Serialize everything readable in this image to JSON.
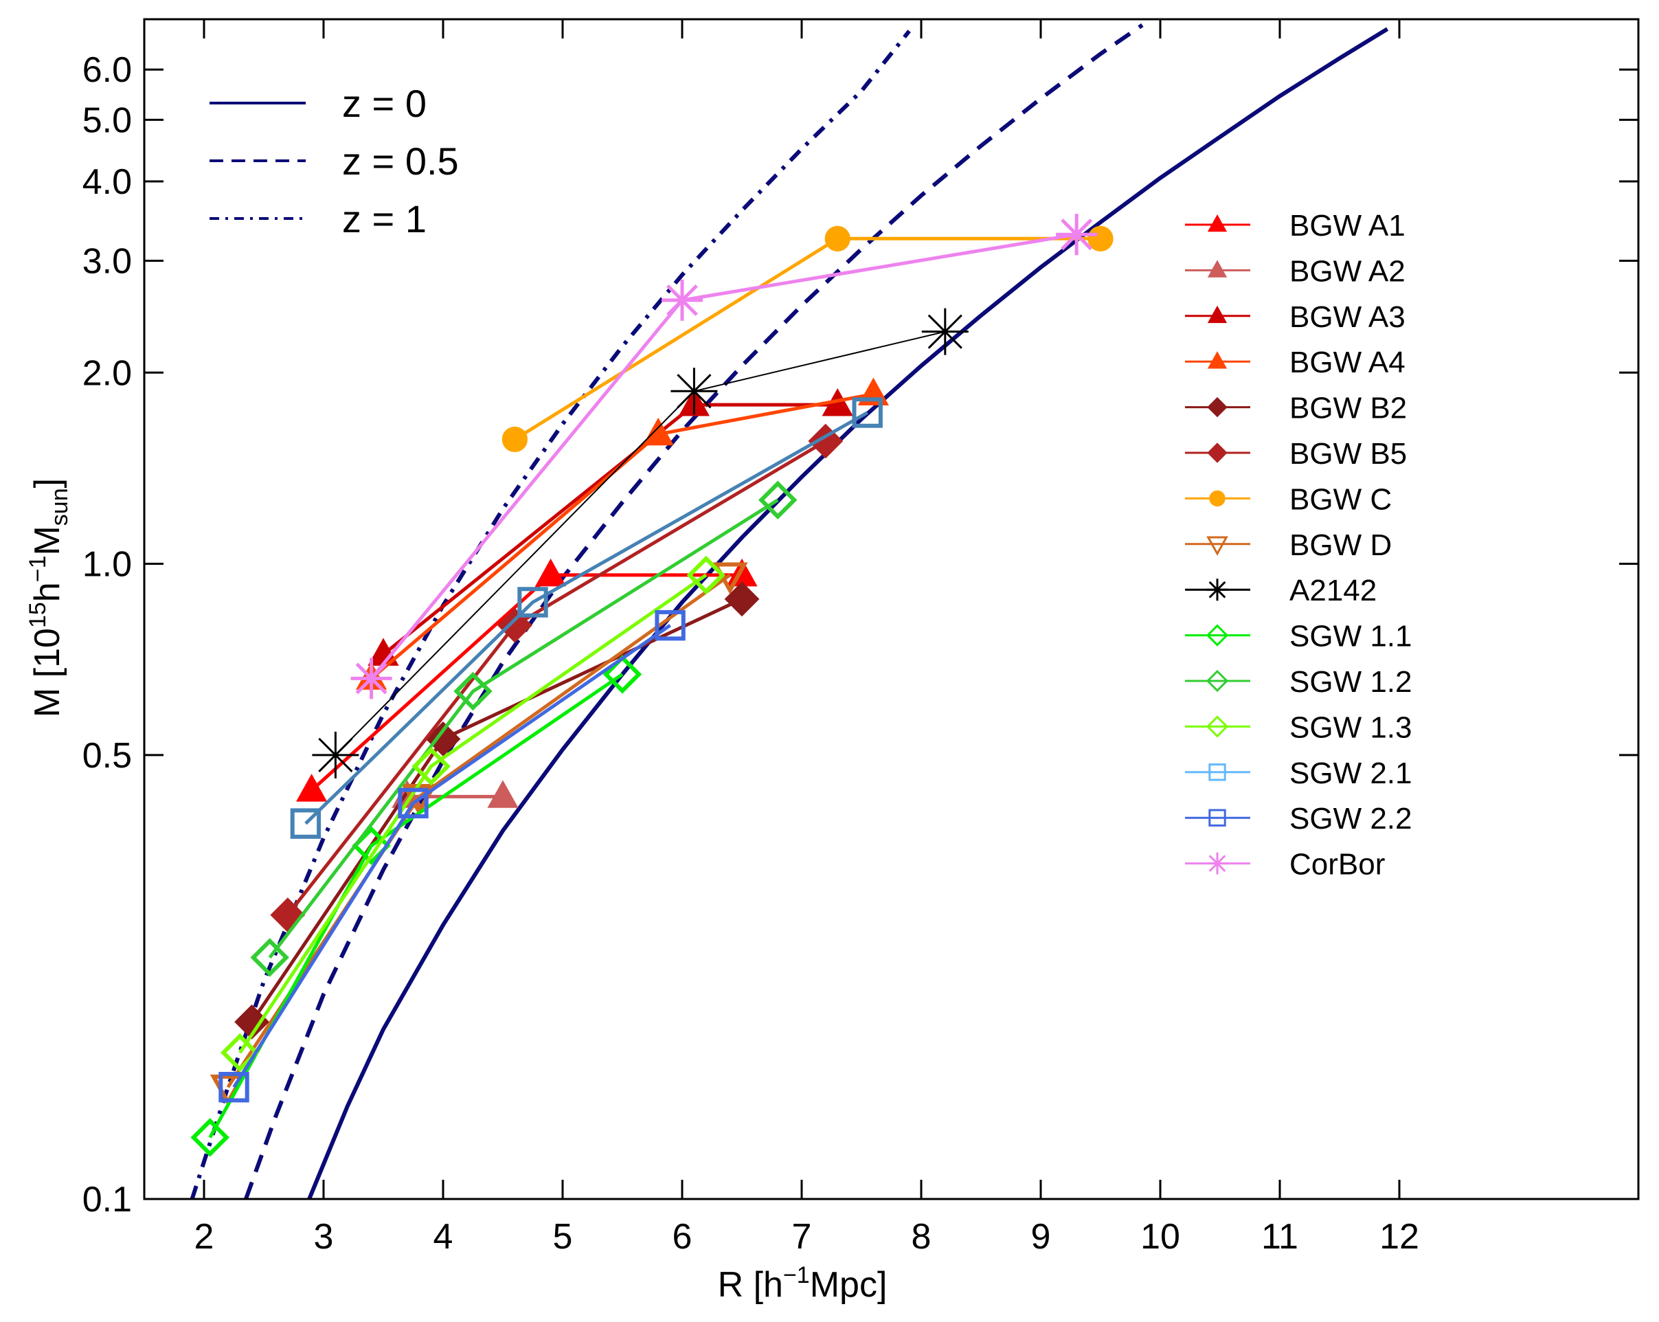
{
  "chart_data": {
    "type": "line",
    "title": "",
    "xlabel": {
      "main": "R [h",
      "sup": "−1",
      "tail": "Mpc]"
    },
    "ylabel": {
      "main": "M [10",
      "sup1": "15",
      "mid1": "h",
      "sup2": "−1",
      "mid2": "M",
      "sub": "sun",
      "tail": "]"
    },
    "xscale": "linear",
    "yscale": "log",
    "xlim": [
      1.5,
      14
    ],
    "ylim": [
      0.1,
      7.2
    ],
    "x_ticks": [
      2,
      3,
      4,
      5,
      6,
      7,
      8,
      9,
      10,
      11,
      12
    ],
    "x_tick_labels": [
      "2",
      "3",
      "4",
      "5",
      "6",
      "7",
      "8",
      "9",
      "10",
      "11",
      "12"
    ],
    "y_ticks": [
      0.1,
      0.5,
      1.0,
      2.0,
      3.0,
      4.0,
      5.0,
      6.0
    ],
    "y_tick_labels": [
      "0.1",
      "0.5",
      "1.0",
      "2.0",
      "3.0",
      "4.0",
      "5.0",
      "6.0"
    ],
    "grid": false,
    "curves_legend_position": "top-left",
    "series_legend_position": "right",
    "curves": [
      {
        "name": "z = 0",
        "style": "solid",
        "color": "#0a0a78",
        "points": [
          [
            2.88,
            0.1
          ],
          [
            3.2,
            0.14
          ],
          [
            3.5,
            0.185
          ],
          [
            4.0,
            0.27
          ],
          [
            4.5,
            0.38
          ],
          [
            5.0,
            0.51
          ],
          [
            5.5,
            0.67
          ],
          [
            6.0,
            0.87
          ],
          [
            6.5,
            1.1
          ],
          [
            7.0,
            1.37
          ],
          [
            7.5,
            1.69
          ],
          [
            8.0,
            2.05
          ],
          [
            8.5,
            2.46
          ],
          [
            9.0,
            2.93
          ],
          [
            9.5,
            3.45
          ],
          [
            10.0,
            4.05
          ],
          [
            10.5,
            4.7
          ],
          [
            11.0,
            5.45
          ],
          [
            11.5,
            6.25
          ],
          [
            11.9,
            6.95
          ]
        ]
      },
      {
        "name": "z = 0.5",
        "style": "dashed",
        "color": "#0a0a78",
        "points": [
          [
            2.35,
            0.1
          ],
          [
            2.6,
            0.135
          ],
          [
            3.0,
            0.21
          ],
          [
            3.5,
            0.33
          ],
          [
            4.0,
            0.49
          ],
          [
            4.5,
            0.7
          ],
          [
            5.0,
            0.95
          ],
          [
            5.5,
            1.25
          ],
          [
            6.0,
            1.62
          ],
          [
            6.5,
            2.05
          ],
          [
            7.0,
            2.55
          ],
          [
            7.5,
            3.13
          ],
          [
            8.0,
            3.8
          ],
          [
            8.5,
            4.55
          ],
          [
            9.0,
            5.4
          ],
          [
            9.5,
            6.35
          ],
          [
            9.85,
            7.05
          ]
        ]
      },
      {
        "name": "z = 1",
        "style": "dashdot",
        "color": "#0a0a78",
        "points": [
          [
            1.9,
            0.1
          ],
          [
            2.2,
            0.15
          ],
          [
            2.5,
            0.22
          ],
          [
            3.0,
            0.37
          ],
          [
            3.5,
            0.58
          ],
          [
            4.0,
            0.86
          ],
          [
            4.5,
            1.22
          ],
          [
            5.0,
            1.66
          ],
          [
            5.5,
            2.2
          ],
          [
            6.0,
            2.85
          ],
          [
            6.5,
            3.6
          ],
          [
            7.0,
            4.5
          ],
          [
            7.5,
            5.55
          ],
          [
            7.9,
            6.9
          ]
        ]
      }
    ],
    "series": [
      {
        "name": "BGW A1",
        "color": "#ff0000",
        "marker": "triangle",
        "filled": true,
        "lw": 5,
        "x": [
          2.9,
          4.9,
          6.5
        ],
        "y": [
          0.44,
          0.96,
          0.96
        ]
      },
      {
        "name": "BGW A2",
        "color": "#cd5c5c",
        "marker": "triangle",
        "filled": true,
        "lw": 5,
        "x": [
          3.7,
          4.5
        ],
        "y": [
          0.43,
          0.43
        ]
      },
      {
        "name": "BGW A3",
        "color": "#cc0000",
        "marker": "triangle",
        "filled": true,
        "lw": 5,
        "x": [
          3.5,
          6.1,
          7.3
        ],
        "y": [
          0.72,
          1.78,
          1.78
        ]
      },
      {
        "name": "BGW A4",
        "color": "#ff4500",
        "marker": "triangle",
        "filled": true,
        "lw": 5,
        "x": [
          3.4,
          5.8,
          7.6
        ],
        "y": [
          0.66,
          1.6,
          1.85
        ]
      },
      {
        "name": "BGW B2",
        "color": "#8b1a1a",
        "marker": "diamond",
        "filled": true,
        "lw": 5,
        "x": [
          2.4,
          4.0,
          6.5
        ],
        "y": [
          0.19,
          0.53,
          0.88
        ]
      },
      {
        "name": "BGW B5",
        "color": "#b22222",
        "marker": "diamond",
        "filled": true,
        "lw": 5,
        "x": [
          2.7,
          4.6,
          7.2
        ],
        "y": [
          0.28,
          0.8,
          1.56
        ]
      },
      {
        "name": "BGW C",
        "color": "#ffa500",
        "marker": "circle",
        "filled": true,
        "lw": 5,
        "x": [
          4.6,
          7.3,
          9.5
        ],
        "y": [
          1.57,
          3.25,
          3.25
        ]
      },
      {
        "name": "BGW D",
        "color": "#d2691e",
        "marker": "triangle-down",
        "filled": false,
        "lw": 5,
        "x": [
          2.2,
          3.8,
          6.4
        ],
        "y": [
          0.15,
          0.43,
          0.96
        ]
      },
      {
        "name": "A2142",
        "color": "#000000",
        "marker": "asterisk",
        "filled": false,
        "lw": 2,
        "x": [
          3.1,
          6.1,
          8.2
        ],
        "y": [
          0.5,
          1.87,
          2.32
        ]
      },
      {
        "name": "SGW 1.1",
        "color": "#00ee00",
        "marker": "diamond",
        "filled": false,
        "lw": 5,
        "x": [
          2.05,
          3.4,
          5.5
        ],
        "y": [
          0.125,
          0.36,
          0.67
        ]
      },
      {
        "name": "SGW 1.2",
        "color": "#32cd32",
        "marker": "diamond",
        "filled": false,
        "lw": 5,
        "x": [
          2.55,
          4.25,
          6.8
        ],
        "y": [
          0.24,
          0.63,
          1.26
        ]
      },
      {
        "name": "SGW 1.3",
        "color": "#7cfc00",
        "marker": "diamond",
        "filled": false,
        "lw": 5,
        "x": [
          2.3,
          3.9,
          6.2
        ],
        "y": [
          0.17,
          0.48,
          0.96
        ]
      },
      {
        "name": "SGW 2.1",
        "color": "#4682b4",
        "marker": "square",
        "filled": false,
        "lw": 5,
        "x": [
          2.85,
          4.75,
          7.55
        ],
        "y": [
          0.39,
          0.87,
          1.73
        ]
      },
      {
        "name": "SGW 2.2",
        "color": "#4169e1",
        "marker": "square",
        "filled": false,
        "lw": 5,
        "x": [
          2.25,
          3.75,
          5.9
        ],
        "y": [
          0.15,
          0.42,
          0.8
        ]
      },
      {
        "name": "CorBor",
        "color": "#ee82ee",
        "marker": "asterisk",
        "filled": false,
        "lw": 5,
        "x": [
          3.4,
          6.0,
          9.3
        ],
        "y": [
          0.66,
          2.6,
          3.3
        ]
      }
    ],
    "legend_swatch_colors": {
      "SGW 2.1": "#63b8ff"
    }
  }
}
